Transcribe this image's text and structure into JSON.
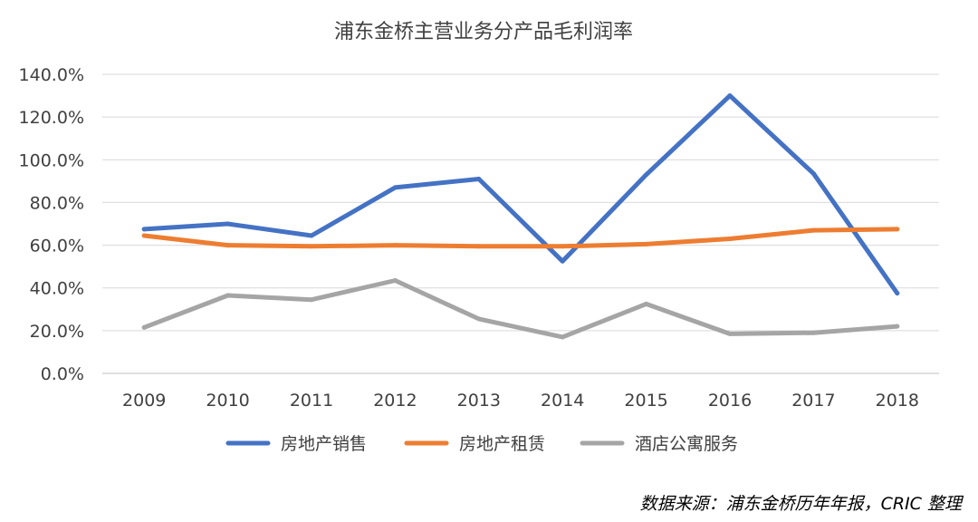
{
  "chart_data": {
    "type": "line",
    "title": "浦东金桥主营业务分产品毛利润率",
    "xlabel": "",
    "ylabel": "",
    "categories": [
      "2009",
      "2010",
      "2011",
      "2012",
      "2013",
      "2014",
      "2015",
      "2016",
      "2017",
      "2018"
    ],
    "y_ticks": [
      "0.0%",
      "20.0%",
      "40.0%",
      "60.0%",
      "80.0%",
      "100.0%",
      "120.0%",
      "140.0%"
    ],
    "ylim": [
      0,
      140
    ],
    "grid": true,
    "legend_position": "bottom",
    "series": [
      {
        "name": "房地产销售",
        "color": "#4472C4",
        "values": [
          67.5,
          70.0,
          64.5,
          87.0,
          91.0,
          52.5,
          93.0,
          130.0,
          93.5,
          37.5
        ]
      },
      {
        "name": "房地产租赁",
        "color": "#ED7D31",
        "values": [
          64.5,
          60.0,
          59.5,
          60.0,
          59.5,
          59.5,
          60.5,
          63.0,
          67.0,
          67.5
        ]
      },
      {
        "name": "酒店公寓服务",
        "color": "#A5A5A5",
        "values": [
          21.5,
          36.5,
          34.5,
          43.5,
          25.5,
          17.0,
          32.5,
          18.5,
          19.0,
          22.0
        ]
      }
    ],
    "source_note": "数据来源：浦东金桥历年年报，CRIC 整理"
  }
}
